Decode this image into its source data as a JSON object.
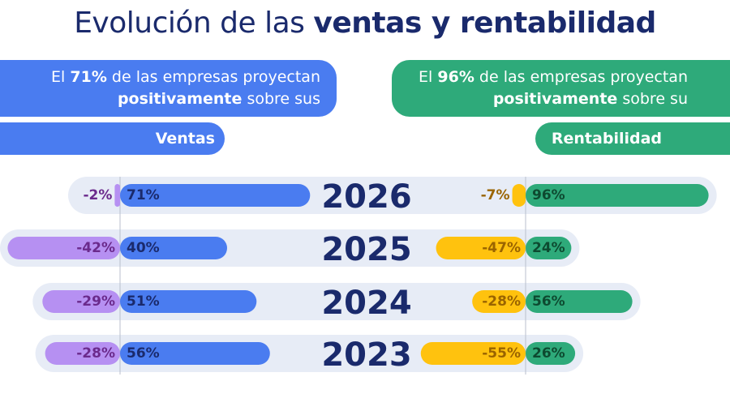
{
  "title": {
    "light": "Evolución de las",
    "bold": "ventas y rentabilidad"
  },
  "chart_data": {
    "type": "bar",
    "categories": [
      "2026",
      "2025",
      "2024",
      "2023"
    ],
    "panels": [
      {
        "header": [
          "El",
          "71%",
          "de las empresas proyectan",
          "positivamente",
          "sobre sus"
        ],
        "title": "Ventas",
        "color": "#4a7cf0",
        "series": [
          {
            "color": "#b690f2",
            "label_color": "#6b2a8c",
            "values": [
              -2,
              -42,
              -29,
              -28
            ],
            "value_labels": [
              "-2%",
              "-42%",
              "-29%",
              "-28%"
            ]
          },
          {
            "color": "#4a7cf0",
            "label_color": "#1a2a6c",
            "values": [
              71,
              40,
              51,
              56
            ],
            "value_labels": [
              "71%",
              "40%",
              "51%",
              "56%"
            ]
          }
        ]
      },
      {
        "header": [
          "El",
          "96%",
          "de las empresas proyectan",
          "positivamente",
          "sobre su"
        ],
        "title": "Rentabilidad",
        "color": "#2eaa7a",
        "series": [
          {
            "color": "#ffc20e",
            "label_color": "#9a6400",
            "values": [
              -7,
              -47,
              -28,
              -55
            ],
            "value_labels": [
              "-7%",
              "-47%",
              "-28%",
              "-55%"
            ]
          },
          {
            "color": "#2eaa7a",
            "label_color": "#0d4a30",
            "values": [
              96,
              24,
              56,
              26
            ],
            "value_labels": [
              "96%",
              "24%",
              "56%",
              "26%"
            ]
          }
        ]
      }
    ]
  }
}
